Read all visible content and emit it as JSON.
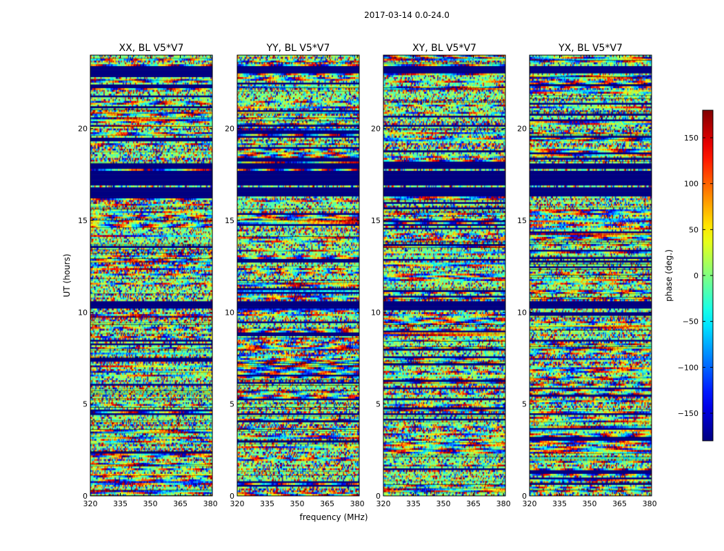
{
  "figure": {
    "suptitle": "2017-03-14 0.0-24.0",
    "ylabel": "UT (hours)",
    "xlabel": "frequency (MHz)"
  },
  "chart_data": {
    "type": "heatmap",
    "title": "2017-03-14 0.0-24.0",
    "xlabel": "frequency (MHz)",
    "ylabel": "UT (hours)",
    "xlim": [
      320,
      381
    ],
    "ylim": [
      0,
      24
    ],
    "xticks": [
      320,
      335,
      350,
      365,
      380
    ],
    "yticks": [
      0,
      5,
      10,
      15,
      20
    ],
    "panels": [
      {
        "title": "XX, BL V5*V7",
        "seed": 11
      },
      {
        "title": "YY, BL V5*V7",
        "seed": 23
      },
      {
        "title": "XY, BL V5*V7",
        "seed": 37
      },
      {
        "title": "YX, BL V5*V7",
        "seed": 53
      }
    ],
    "flagged_hours": [
      [
        17.8,
        18.1
      ],
      [
        16.9,
        17.7
      ],
      [
        16.3,
        16.75
      ],
      [
        10.2,
        10.55
      ],
      [
        23.05,
        23.35
      ]
    ],
    "colorbar": {
      "label": "phase (deg.)",
      "vmin": -180,
      "vmax": 180,
      "ticks": [
        -150,
        -100,
        -50,
        0,
        50,
        100,
        150
      ],
      "colormap": "jet",
      "stops": [
        "#00007f",
        "#0000ff",
        "#00ffff",
        "#7fff7f",
        "#ffff00",
        "#ff0000",
        "#7f0000"
      ]
    }
  }
}
